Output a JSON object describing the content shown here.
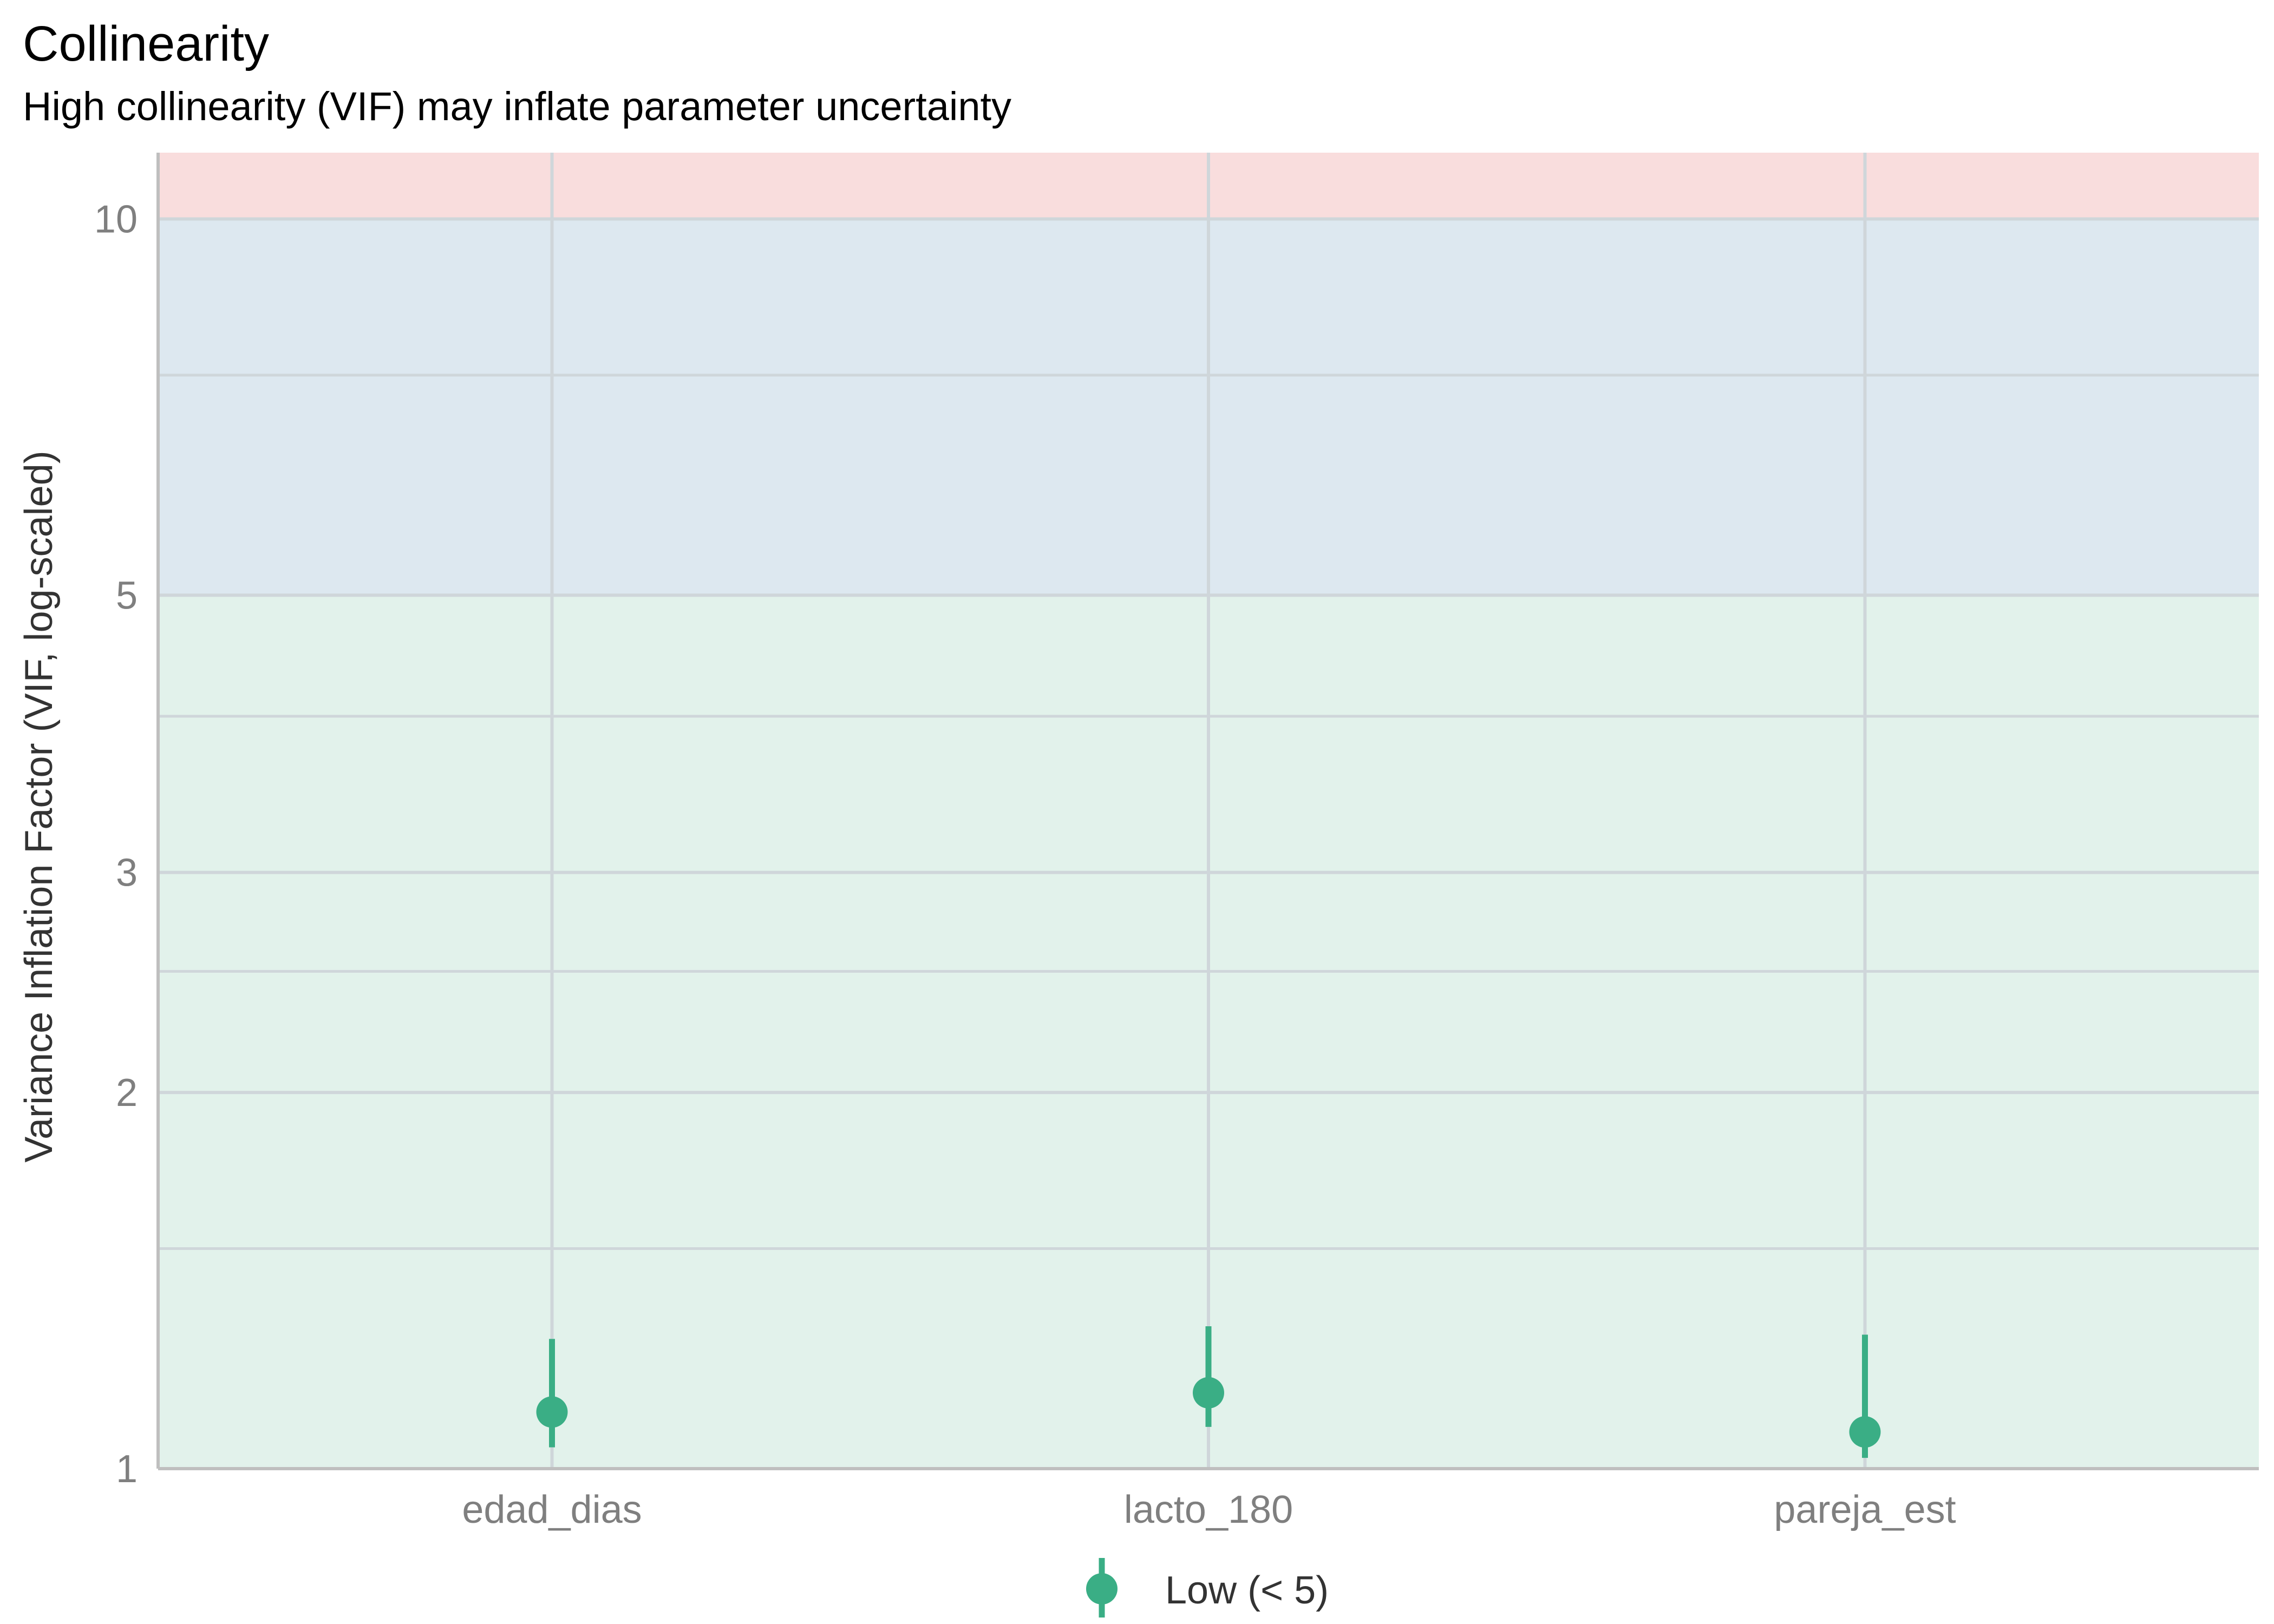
{
  "colors": {
    "zone_high": "#f9dddd",
    "zone_moderate": "#dde8f0",
    "zone_low": "#e2f2eb",
    "grid": "#cfd6da",
    "axis": "#bfbfbf",
    "point": "#3aae85"
  },
  "chart_data": {
    "type": "scatter",
    "title": "Collinearity",
    "subtitle": "High collinearity (VIF) may inflate parameter uncertainty",
    "xlabel": "",
    "ylabel": "Variance Inflation Factor (VIF, log-scaled)",
    "y_scale": "log",
    "ylim": [
      1,
      11.3
    ],
    "y_ticks": [
      1,
      2,
      3,
      5,
      10
    ],
    "y_minor_ticks": [
      1.5,
      2.5,
      4,
      7.5
    ],
    "grid": true,
    "legend_position": "bottom",
    "categories": [
      "edad_dias",
      "lacto_180",
      "pareja_est"
    ],
    "zones": [
      {
        "name": "high",
        "from": 10,
        "to": 11.3
      },
      {
        "name": "moderate",
        "from": 5,
        "to": 10
      },
      {
        "name": "low",
        "from": 1,
        "to": 5
      }
    ],
    "series": [
      {
        "name": "Low (< 5)",
        "values": [
          1.11,
          1.15,
          1.07
        ],
        "ci_low": [
          1.04,
          1.08,
          1.02
        ],
        "ci_high": [
          1.27,
          1.3,
          1.28
        ]
      }
    ]
  }
}
